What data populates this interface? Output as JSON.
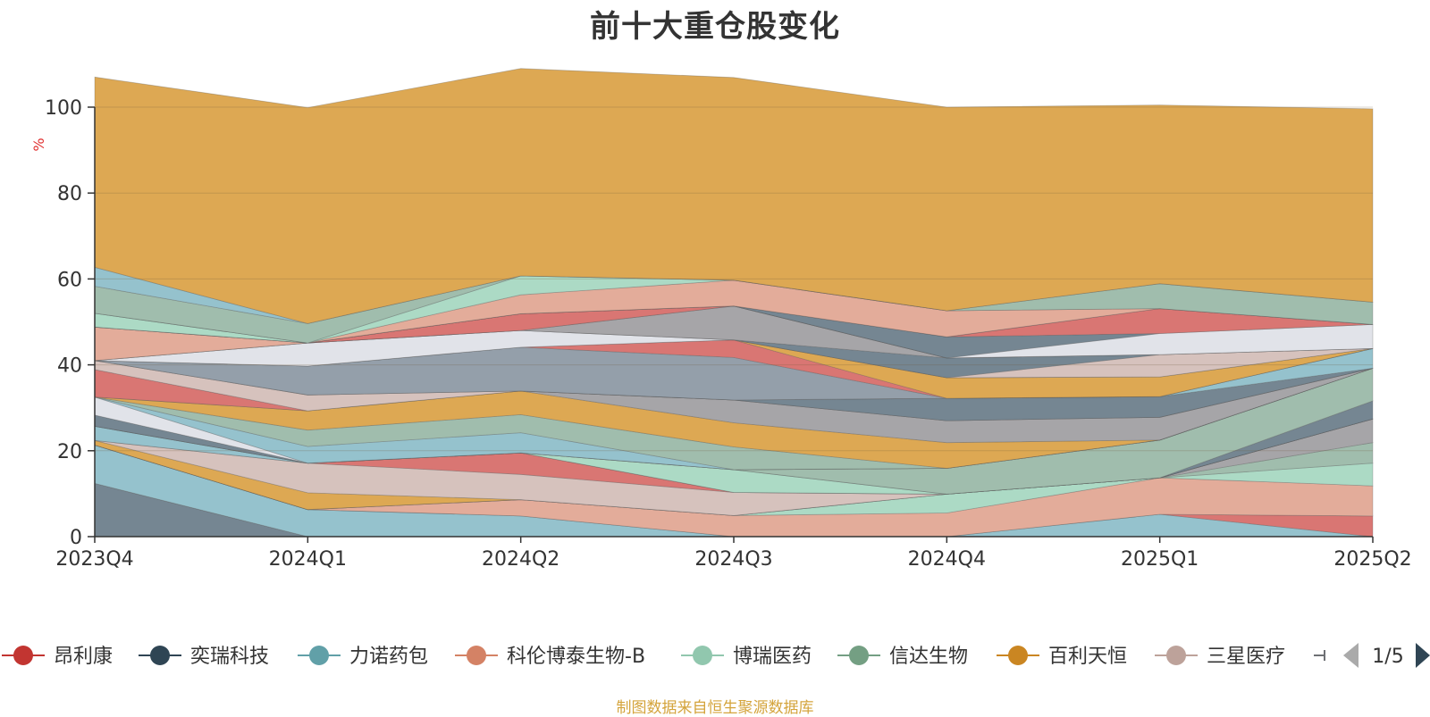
{
  "chart_data": {
    "type": "area",
    "title": "前十大重仓股变化",
    "xlabel": "",
    "ylabel": "%",
    "ylim": [
      0,
      100
    ],
    "yticks": [
      0,
      20,
      40,
      60,
      80,
      100
    ],
    "grid": true,
    "stacked": true,
    "categories": [
      "2023Q4",
      "2024Q1",
      "2024Q2",
      "2024Q3",
      "2024Q4",
      "2025Q1",
      "2025Q2"
    ],
    "series": [
      {
        "name": "",
        "color": "#6e7f8c",
        "values": [
          12.4,
          0,
          0,
          0,
          0,
          0,
          0
        ]
      },
      {
        "name": "",
        "color": "#8fbfca",
        "values": [
          8.9,
          6.3,
          4.8,
          0,
          0,
          5.2,
          0
        ]
      },
      {
        "name": "",
        "color": "#d76f6b",
        "values": [
          0,
          0,
          0,
          0,
          0,
          0,
          4.8
        ]
      },
      {
        "name": "",
        "color": "#e1a895",
        "values": [
          0,
          0,
          3.8,
          4.9,
          5.5,
          8.5,
          7.0
        ]
      },
      {
        "name": "",
        "color": "#a8d8c2",
        "values": [
          0,
          0,
          0,
          0,
          4.4,
          0,
          5.3
        ]
      },
      {
        "name": "",
        "color": "#9bb9a9",
        "values": [
          0,
          0,
          0,
          0,
          0,
          0,
          4.8
        ]
      },
      {
        "name": "",
        "color": "#a1a0a3",
        "values": [
          0,
          0,
          0,
          0,
          0,
          0,
          5.5
        ]
      },
      {
        "name": "",
        "color": "#dba34a",
        "values": [
          1.1,
          3.9,
          0,
          0,
          0,
          0,
          0
        ]
      },
      {
        "name": "",
        "color": "#d4bfb9",
        "values": [
          0,
          6.9,
          5.9,
          5.4,
          0,
          0,
          0
        ]
      },
      {
        "name": "",
        "color": "#d76f6b",
        "values": [
          0,
          0,
          5.0,
          0,
          0,
          0,
          0
        ]
      },
      {
        "name": "",
        "color": "#8fbfca",
        "values": [
          3.3,
          0,
          0,
          0,
          0,
          0,
          0
        ]
      },
      {
        "name": "",
        "color": "#a8d8c2",
        "values": [
          0,
          0,
          0,
          5.3,
          0,
          0,
          0
        ]
      },
      {
        "name": "",
        "color": "#6e7f8c",
        "values": [
          0,
          0,
          0,
          0,
          0,
          0,
          4.2
        ]
      },
      {
        "name": "",
        "color": "#9bb9a9",
        "values": [
          0,
          0,
          0,
          0,
          6.0,
          8.8,
          7.6
        ]
      },
      {
        "name": "",
        "color": "#6e7f8c",
        "values": [
          2.6,
          0,
          0,
          0,
          0,
          0,
          0
        ]
      },
      {
        "name": "",
        "color": "#dfe1e8",
        "values": [
          4.2,
          0,
          0,
          0,
          0,
          0,
          0
        ]
      },
      {
        "name": "",
        "color": "#8fbfca",
        "values": [
          0,
          3.9,
          4.7,
          0,
          0,
          0,
          0
        ]
      },
      {
        "name": "",
        "color": "#9bb9a9",
        "values": [
          0,
          3.8,
          4.2,
          5.3,
          0,
          0,
          0
        ]
      },
      {
        "name": "",
        "color": "#dba34a",
        "values": [
          0,
          4.5,
          5.5,
          5.6,
          6.0,
          0,
          0
        ]
      },
      {
        "name": "",
        "color": "#a1a0a3",
        "values": [
          0,
          0,
          0,
          5.3,
          5.1,
          5.3,
          0
        ]
      },
      {
        "name": "",
        "color": "#d76f6b",
        "values": [
          6.4,
          0,
          0,
          0,
          0,
          0,
          0
        ]
      },
      {
        "name": "",
        "color": "#d4bfb9",
        "values": [
          2.1,
          3.7,
          0,
          0,
          0,
          0,
          0
        ]
      },
      {
        "name": "",
        "color": "#6e7f8c",
        "values": [
          0,
          0,
          0,
          0,
          5.2,
          4.8,
          0
        ]
      },
      {
        "name": "",
        "color": "#8fbfca",
        "values": [
          0,
          0,
          0,
          0,
          0,
          0,
          4.6
        ]
      },
      {
        "name": "",
        "color": "#6e7f8c",
        "values": [
          0,
          0,
          0,
          0,
          0,
          0,
          0
        ]
      },
      {
        "name": "",
        "color": "#8e9aa5",
        "values": [
          0,
          6.7,
          10.2,
          9.9,
          0,
          0,
          0
        ]
      },
      {
        "name": "",
        "color": "#d76f6b",
        "values": [
          0,
          0,
          0,
          4.1,
          0,
          0,
          0
        ]
      },
      {
        "name": "",
        "color": "#dba34a",
        "values": [
          0,
          0,
          0,
          0,
          4.8,
          4.6,
          0
        ]
      },
      {
        "name": "",
        "color": "#dfe1e8",
        "values": [
          0,
          5.4,
          3.9,
          0,
          0,
          0,
          0
        ]
      },
      {
        "name": "",
        "color": "#d4bfb9",
        "values": [
          0,
          0,
          0,
          0,
          0,
          5.2,
          0
        ]
      },
      {
        "name": "",
        "color": "#6e7f8c",
        "values": [
          0,
          0,
          0,
          0,
          4.6,
          0,
          0
        ]
      },
      {
        "name": "",
        "color": "#a1a0a3",
        "values": [
          0,
          0,
          0,
          7.9,
          0,
          0,
          0
        ]
      },
      {
        "name": "",
        "color": "#e1a895",
        "values": [
          7.8,
          0,
          0,
          0,
          0,
          0,
          0
        ]
      },
      {
        "name": "",
        "color": "#d76f6b",
        "values": [
          0,
          0,
          3.9,
          0,
          0,
          0,
          0
        ]
      },
      {
        "name": "",
        "color": "#dfe1e8",
        "values": [
          0,
          0,
          0,
          0,
          0,
          4.9,
          5.6
        ]
      },
      {
        "name": "",
        "color": "#6e7f8c",
        "values": [
          0,
          0,
          0,
          0,
          4.9,
          0,
          0
        ]
      },
      {
        "name": "",
        "color": "#d76f6b",
        "values": [
          0,
          0,
          0,
          0,
          0,
          5.8,
          0
        ]
      },
      {
        "name": "",
        "color": "#a8d8c2",
        "values": [
          3.2,
          0,
          0,
          0,
          0,
          0,
          0
        ]
      },
      {
        "name": "",
        "color": "#e1a895",
        "values": [
          0,
          0,
          4.4,
          6.0,
          6.1,
          0,
          0
        ]
      },
      {
        "name": "",
        "color": "#a8d8c2",
        "values": [
          0,
          0,
          4.4,
          0,
          0,
          0,
          0
        ]
      },
      {
        "name": "",
        "color": "#9bb9a9",
        "values": [
          6.3,
          4.5,
          0,
          0,
          0,
          5.8,
          5.2
        ]
      },
      {
        "name": "",
        "color": "#8fbfca",
        "values": [
          4.4,
          0,
          0,
          0,
          0,
          0,
          0
        ]
      },
      {
        "name": "",
        "color": "#dba34a",
        "values": [
          44.3,
          50.3,
          48.3,
          47.2,
          47.4,
          41.6,
          45.0
        ]
      }
    ]
  },
  "legend": {
    "items": [
      {
        "label": "昂利康",
        "color": "#c23531"
      },
      {
        "label": "奕瑞科技",
        "color": "#2f4554"
      },
      {
        "label": "力诺药包",
        "color": "#61a0a8"
      },
      {
        "label": "科伦博泰生物-B",
        "color": "#d48265"
      },
      {
        "label": "博瑞医药",
        "color": "#91c7ae"
      },
      {
        "label": "信达生物",
        "color": "#749f83"
      },
      {
        "label": "百利天恒",
        "color": "#ca8622"
      },
      {
        "label": "三星医疗",
        "color": "#bda29a"
      }
    ],
    "overflow_color": "#6e7074",
    "page_text": "1/5",
    "prev_color": "#aaaaaa",
    "next_color": "#2f4554"
  },
  "ylabel_color": "#e03030",
  "source_note": "制图数据来自恒生聚源数据库"
}
